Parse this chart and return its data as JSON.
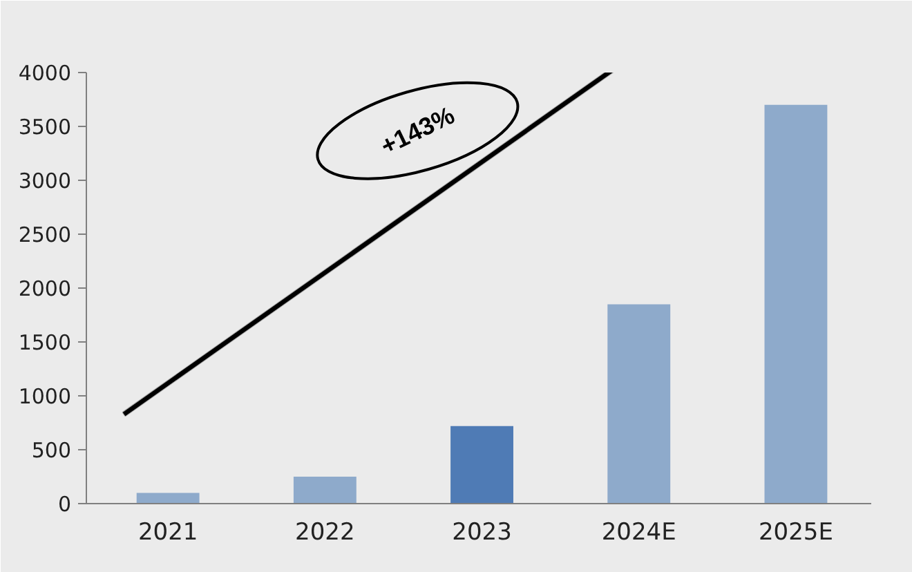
{
  "chart_data": {
    "type": "bar",
    "categories": [
      "2021",
      "2022",
      "2023",
      "2024E",
      "2025E"
    ],
    "values": [
      100,
      250,
      720,
      1850,
      3700
    ],
    "colors": [
      "#8eaacb",
      "#8eaacb",
      "#4f7bb5",
      "#8eaacb",
      "#8eaacb"
    ],
    "ylim": [
      0,
      4000
    ],
    "yticks": [
      0,
      500,
      1000,
      1500,
      2000,
      2500,
      3000,
      3500,
      4000
    ],
    "annotations": [
      "+143%"
    ],
    "grid": false
  }
}
